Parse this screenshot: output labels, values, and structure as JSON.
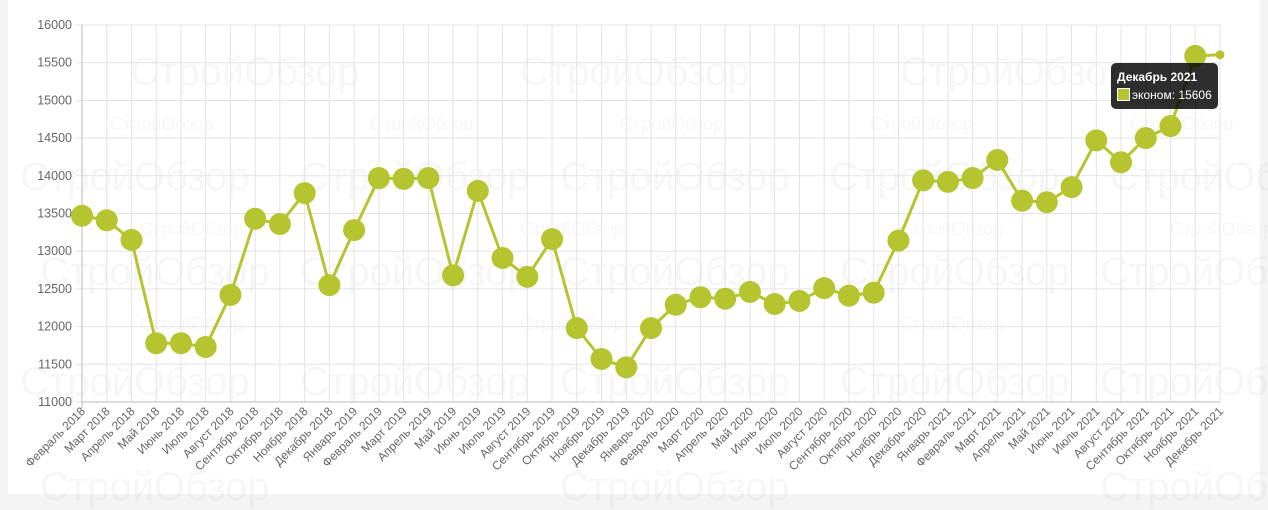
{
  "chart_data": {
    "type": "line",
    "title": "",
    "xlabel": "",
    "ylabel": "",
    "ylim": [
      11000,
      16000
    ],
    "yticks": [
      11000,
      11500,
      12000,
      12500,
      13000,
      13500,
      14000,
      14500,
      15000,
      15500,
      16000
    ],
    "grid": true,
    "categories": [
      "Февраль 2018",
      "Март 2018",
      "Апрель 2018",
      "Май 2018",
      "Июнь 2018",
      "Июль 2018",
      "Август 2018",
      "Сентябрь 2018",
      "Октябрь 2018",
      "Ноябрь 2018",
      "Декабрь 2018",
      "Январь 2019",
      "Февраль 2019",
      "Март 2019",
      "Апрель 2019",
      "Май 2019",
      "Июнь 2019",
      "Июль 2019",
      "Август 2019",
      "Сентябрь 2019",
      "Октябрь 2019",
      "Ноябрь 2019",
      "Декабрь 2019",
      "Январь 2020",
      "Февраль 2020",
      "Март 2020",
      "Апрель 2020",
      "Май 2020",
      "Июнь 2020",
      "Июль 2020",
      "Август 2020",
      "Сентябрь 2020",
      "Октябрь 2020",
      "Ноябрь 2020",
      "Декабрь 2020",
      "Январь 2021",
      "Февраль 2021",
      "Март 2021",
      "Апрель 2021",
      "Май 2021",
      "Июнь 2021",
      "Июль 2021",
      "Август 2021",
      "Сентябрь 2021",
      "Октябрь 2021",
      "Ноябрь 2021",
      "Декабрь 2021"
    ],
    "series": [
      {
        "name": "эконом",
        "color": "#b5c42f",
        "values": [
          13470,
          13410,
          13150,
          11780,
          11780,
          11730,
          12420,
          13430,
          13360,
          13770,
          12550,
          13280,
          13970,
          13960,
          13970,
          12680,
          13800,
          12910,
          12660,
          13160,
          11980,
          11570,
          11460,
          11980,
          12290,
          12390,
          12370,
          12460,
          12300,
          12340,
          12510,
          12410,
          12450,
          13140,
          13940,
          13920,
          13970,
          14210,
          13670,
          13650,
          13850,
          14470,
          14180,
          14500,
          14660,
          15590,
          15606
        ]
      }
    ],
    "tooltip": {
      "title": "Декабрь 2021",
      "label": "эконом: 15606",
      "index": 46
    },
    "watermark": "СтройОбзор"
  }
}
